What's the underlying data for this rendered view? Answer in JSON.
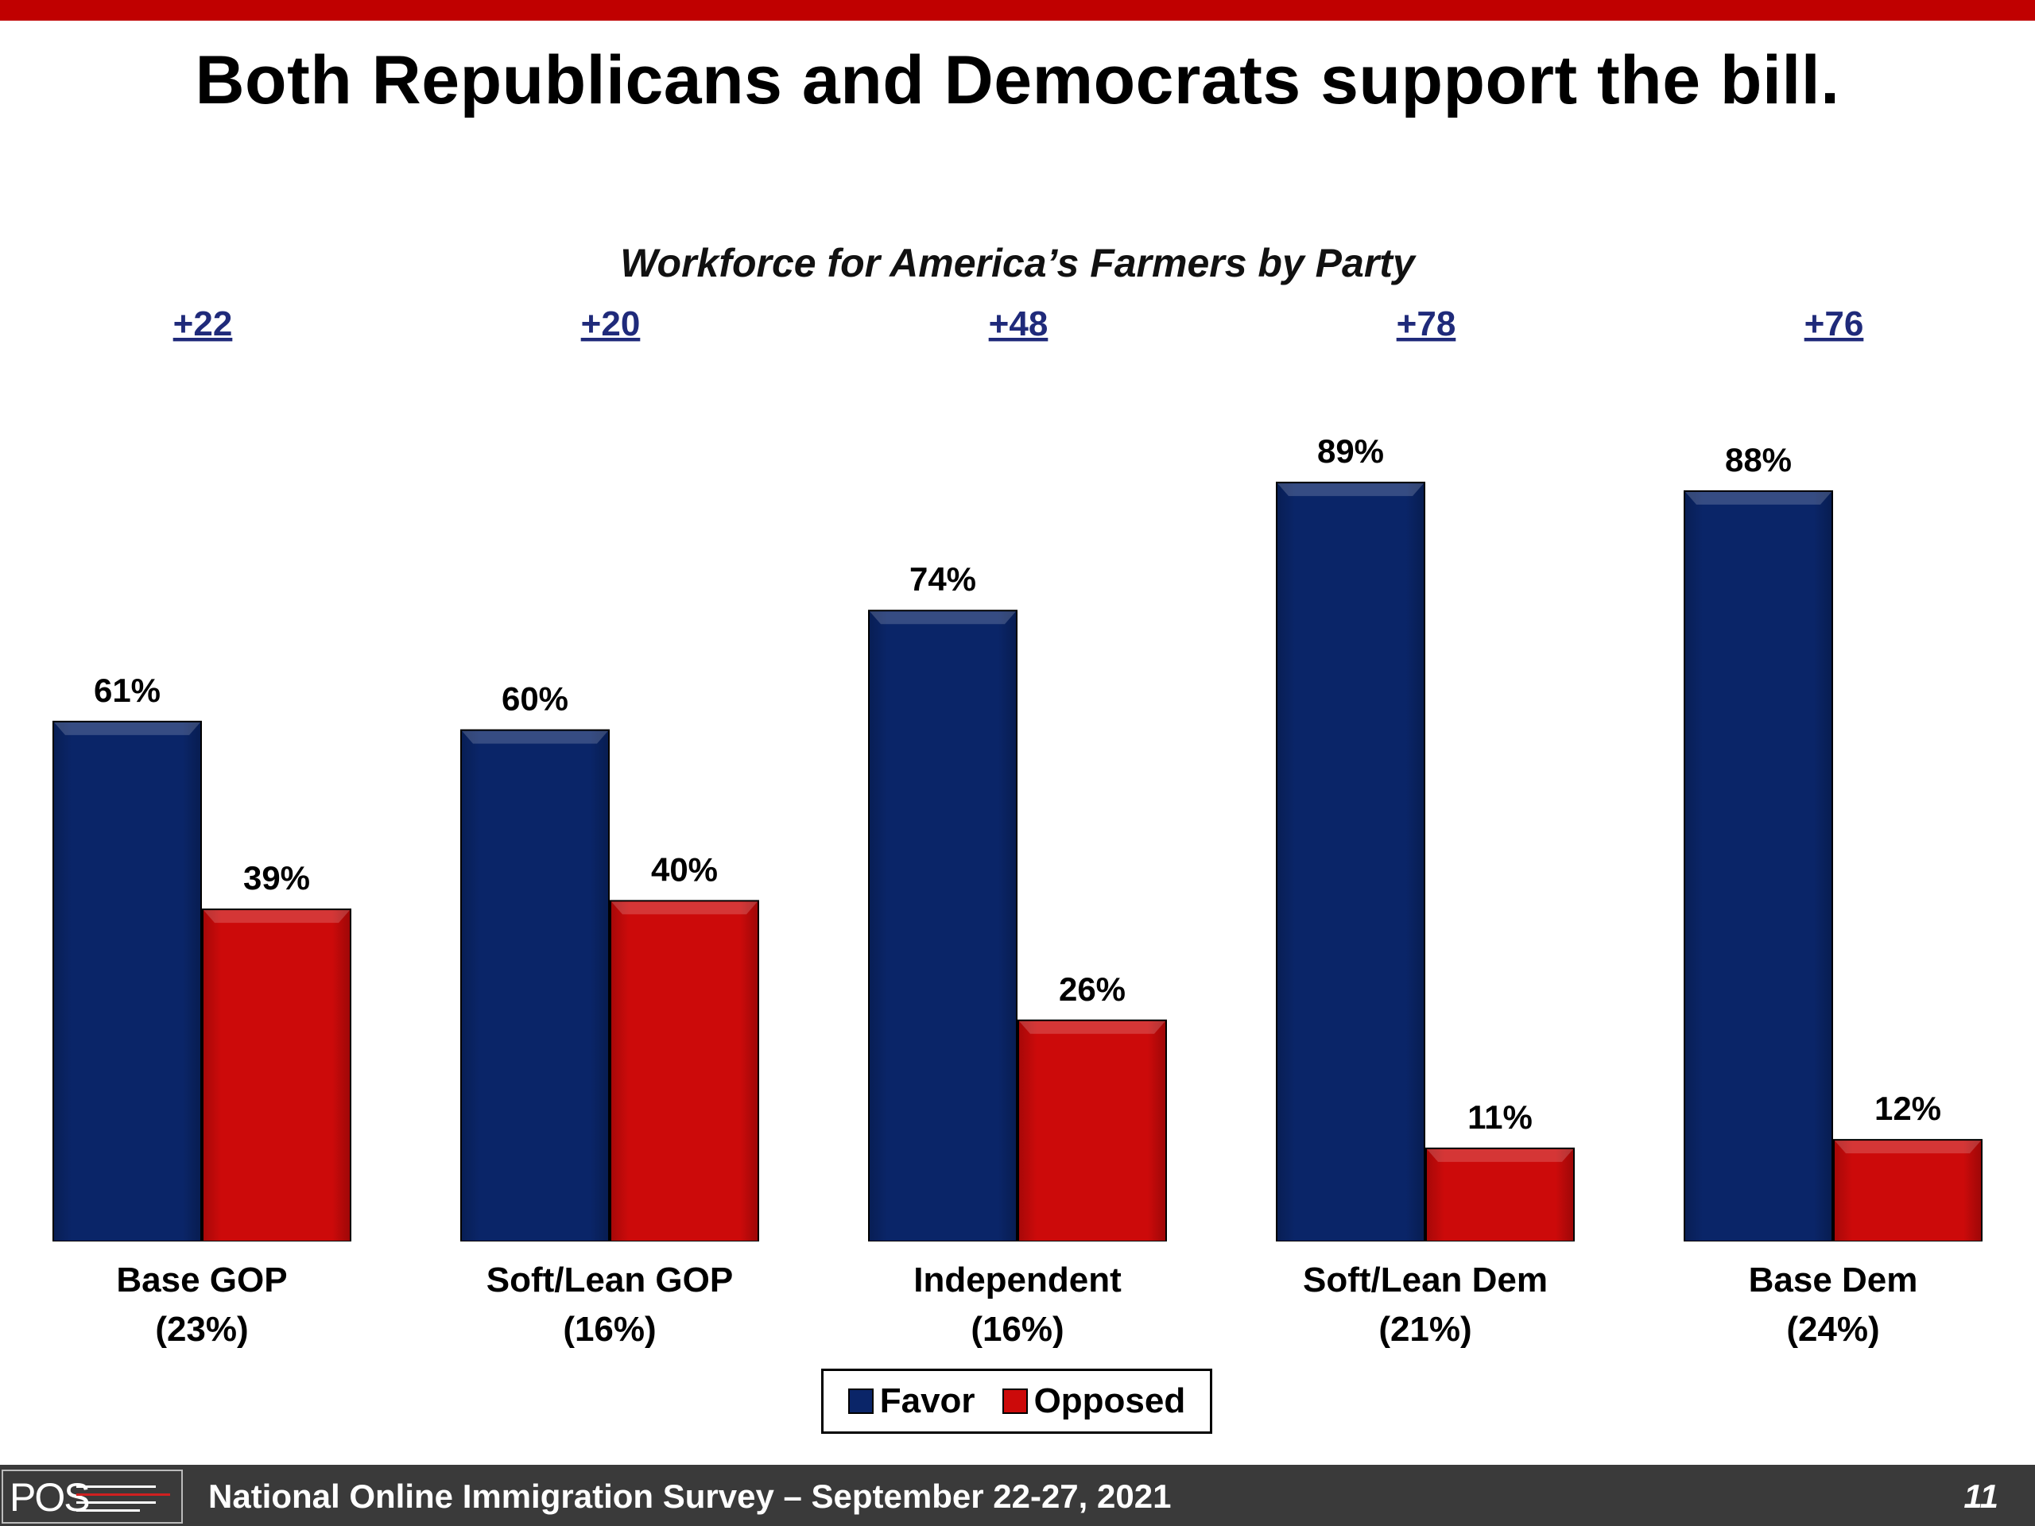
{
  "slide": {
    "title": "Both Republicans and Democrats support the bill.",
    "footer_text": "National Online Immigration Survey – September 22-27, 2021",
    "page_number": "11",
    "logo_text": "POS"
  },
  "colors": {
    "favor": "#0a2568",
    "opposed": "#cc0a0a",
    "accent_bar": "#c00000",
    "footer_bg": "#3a3a3a",
    "net_label": "#1f2a7a"
  },
  "chart_data": {
    "type": "bar",
    "title": "Workforce for America’s Farmers by Party",
    "categories": [
      "Base GOP",
      "Soft/Lean GOP",
      "Independent",
      "Soft/Lean Dem",
      "Base Dem"
    ],
    "category_shares": [
      "(23%)",
      "(16%)",
      "(16%)",
      "(21%)",
      "(24%)"
    ],
    "net_labels": [
      "+22",
      "+20",
      "+48",
      "+78",
      "+76"
    ],
    "series": [
      {
        "name": "Favor",
        "values": [
          61,
          60,
          74,
          89,
          88
        ],
        "labels": [
          "61%",
          "60%",
          "74%",
          "89%",
          "88%"
        ]
      },
      {
        "name": "Opposed",
        "values": [
          39,
          40,
          26,
          11,
          12
        ],
        "labels": [
          "39%",
          "40%",
          "26%",
          "11%",
          "12%"
        ]
      }
    ],
    "ylim": [
      0,
      100
    ],
    "grid": false,
    "legend_position": "bottom"
  }
}
